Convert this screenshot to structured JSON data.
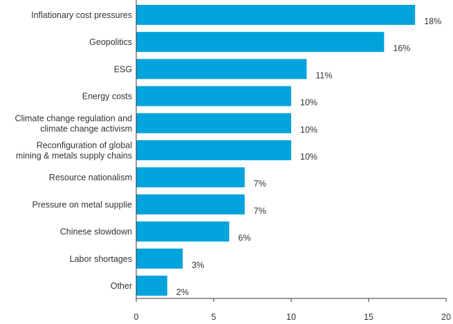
{
  "chart_data": {
    "type": "bar",
    "orientation": "horizontal",
    "title": "",
    "xlabel": "",
    "ylabel": "",
    "categories": [
      [
        "Inflationary cost pressures"
      ],
      [
        "Geopolitics"
      ],
      [
        "ESG"
      ],
      [
        "Energy costs"
      ],
      [
        "Climate change regulation and",
        "climate change activism"
      ],
      [
        "Reconfiguration of global",
        "mining & metals supply chains"
      ],
      [
        "Resource nationalism"
      ],
      [
        "Pressure on metal supplie"
      ],
      [
        "Chinese slowdown"
      ],
      [
        "Labor shortages"
      ],
      [
        "Other"
      ]
    ],
    "values": [
      18,
      16,
      11,
      10,
      10,
      10,
      7,
      7,
      6,
      3,
      2
    ],
    "value_labels": [
      "18%",
      "16%",
      "11%",
      "10%",
      "10%",
      "10%",
      "7%",
      "7%",
      "6%",
      "3%",
      "2%"
    ],
    "xlim": [
      0,
      20
    ],
    "xticks": [
      0,
      5,
      10,
      15,
      20
    ],
    "xtick_labels": [
      "0",
      "5",
      "10",
      "15",
      "20"
    ],
    "grid": false,
    "legend": "none",
    "colors": {
      "bar": "#00a3dc",
      "axis": "#333333",
      "text": "#333333"
    }
  }
}
